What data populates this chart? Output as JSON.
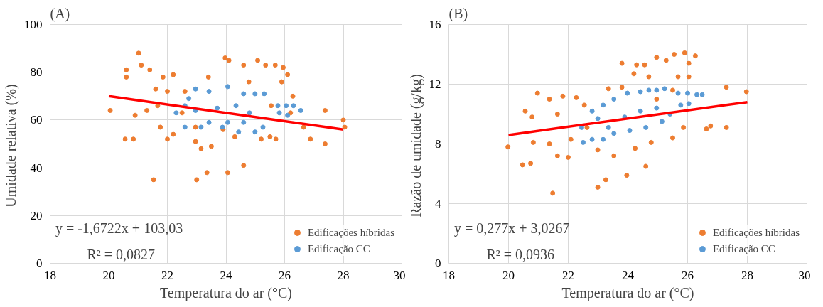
{
  "chart_data": [
    {
      "type": "scatter",
      "title": "(A)",
      "xlabel": "Temperatura do ar (°C)",
      "ylabel": "Umidade relativa  (%)",
      "xlim": [
        18,
        30
      ],
      "xticks": [
        18,
        20,
        22,
        24,
        26,
        28,
        30
      ],
      "ylim": [
        0,
        100
      ],
      "yticks": [
        0,
        20,
        40,
        60,
        80,
        100
      ],
      "grid": true,
      "legend": "bottom right",
      "marker": "circle",
      "annotations": [
        "y = -1,6722x  + 103,03",
        "R² = 0,0827"
      ],
      "series": [
        {
          "name": "Edificações híbridas",
          "type": "scatter",
          "color": "#ed7d31",
          "x": [
            20.05,
            20.56,
            20.84,
            21.53,
            21.02,
            21.11,
            20.6,
            20.6,
            21.4,
            21.85,
            22.2,
            20.9,
            21.3,
            21.67,
            21.76,
            22.0,
            22.2,
            22.6,
            22.96,
            23.15,
            23.5,
            23.0,
            23.35,
            24.06,
            24.6,
            23.97,
            24.1,
            24.6,
            25.08,
            25.35,
            25.68,
            25.95,
            26.1,
            25.9,
            26.28,
            26.65,
            26.88,
            27.38,
            27.38,
            28.0,
            28.05,
            23.4,
            24.78,
            25.5,
            24.3,
            25.2,
            25.7,
            22.5,
            22.0,
            21.6,
            23.9,
            22.96,
            25.54,
            26.2
          ],
          "values": [
            64,
            52,
            52,
            35,
            88,
            83,
            81,
            78,
            81,
            78,
            79,
            62,
            64,
            66,
            57,
            52,
            54,
            72,
            51,
            48,
            49,
            35,
            38,
            38,
            41,
            86,
            85,
            83,
            85,
            83,
            83,
            82,
            79,
            76,
            70,
            57,
            52,
            64,
            50,
            60,
            57,
            78,
            76,
            53,
            53,
            52,
            52,
            63,
            72,
            73,
            56,
            57,
            66,
            63
          ]
        },
        {
          "name": "Edificação CC",
          "type": "scatter",
          "color": "#5b9bd5",
          "x": [
            22.73,
            22.96,
            23.42,
            24.06,
            24.6,
            24.99,
            25.3,
            25.77,
            26.05,
            26.3,
            26.55,
            22.6,
            23.15,
            23.88,
            24.43,
            24.99,
            25.26,
            22.3,
            22.96,
            23.7,
            24.34,
            24.8,
            25.82,
            26.1,
            23.42,
            24.06,
            24.6,
            22.6
          ],
          "values": [
            69,
            73,
            72,
            74,
            71,
            71,
            71,
            66,
            66,
            66,
            64,
            57,
            57,
            57,
            55,
            55,
            57,
            63,
            64,
            65,
            66,
            63,
            63,
            62,
            59,
            59,
            59,
            66
          ]
        },
        {
          "type": "line",
          "color": "#ff0000",
          "marker": "none",
          "x": [
            20,
            28
          ],
          "values": [
            70,
            56
          ]
        }
      ]
    },
    {
      "type": "scatter",
      "title": "(B)",
      "xlabel": "Temperatura do ar (°C)",
      "ylabel": "Razão de umidade  (g/kg)",
      "xlim": [
        18,
        30
      ],
      "xticks": [
        18,
        20,
        22,
        24,
        26,
        28,
        30
      ],
      "ylim": [
        0,
        16
      ],
      "yticks": [
        0,
        4,
        8,
        12,
        16
      ],
      "grid": true,
      "legend": "bottom right",
      "marker": "circle",
      "annotations": [
        "y = 0,277x  + 3,0267",
        "R² = 0,0936"
      ],
      "series": [
        {
          "name": "Edificações híbridas",
          "type": "scatter",
          "color": "#ed7d31",
          "x": [
            19.98,
            20.47,
            20.74,
            21.48,
            20.97,
            20.56,
            20.79,
            21.37,
            21.82,
            22.27,
            20.83,
            21.37,
            21.64,
            22.0,
            22.99,
            23.26,
            23.96,
            24.6,
            23.8,
            24.29,
            24.56,
            24.96,
            25.28,
            25.55,
            25.9,
            26.04,
            26.26,
            25.68,
            26.04,
            24.2,
            24.7,
            23.35,
            23.8,
            27.3,
            27.97,
            26.63,
            26.77,
            27.3,
            22.99,
            23.53,
            24.24,
            24.78,
            25.5,
            25.86,
            22.63,
            22.09,
            22.54,
            24.96,
            25.5,
            21.64
          ],
          "values": [
            7.8,
            6.6,
            6.7,
            4.7,
            11.4,
            10.2,
            9.8,
            11.0,
            11.2,
            11.1,
            8.1,
            8.0,
            7.2,
            7.1,
            5.1,
            5.6,
            5.9,
            6.5,
            13.4,
            13.3,
            13.3,
            13.8,
            13.6,
            14.0,
            14.1,
            13.4,
            13.9,
            12.5,
            12.5,
            12.7,
            12.5,
            11.7,
            11.8,
            11.8,
            11.5,
            9.0,
            9.2,
            9.1,
            7.6,
            7.2,
            7.7,
            8.1,
            8.4,
            9.1,
            9.1,
            8.3,
            10.6,
            11.0,
            11.6,
            10.0
          ]
        },
        {
          "name": "Edificação CC",
          "type": "scatter",
          "color": "#5b9bd5",
          "x": [
            22.5,
            22.8,
            22.45,
            22.99,
            22.8,
            23.17,
            23.53,
            23.98,
            24.42,
            24.7,
            24.96,
            25.23,
            25.68,
            26.0,
            26.31,
            26.49,
            26.04,
            25.77,
            23.53,
            24.06,
            24.6,
            25.14,
            23.89,
            24.42,
            24.96,
            23.35,
            25.41,
            23.17
          ],
          "values": [
            8.1,
            8.3,
            9.1,
            9.7,
            10.2,
            10.6,
            11.0,
            11.4,
            11.5,
            11.6,
            11.6,
            11.7,
            11.4,
            11.4,
            11.3,
            11.3,
            10.7,
            10.6,
            8.7,
            8.9,
            9.1,
            9.5,
            9.8,
            10.2,
            10.4,
            9.1,
            10.0,
            8.3
          ]
        },
        {
          "type": "line",
          "color": "#ff0000",
          "marker": "none",
          "x": [
            20,
            28
          ],
          "values": [
            8.6,
            10.8
          ]
        }
      ]
    }
  ]
}
